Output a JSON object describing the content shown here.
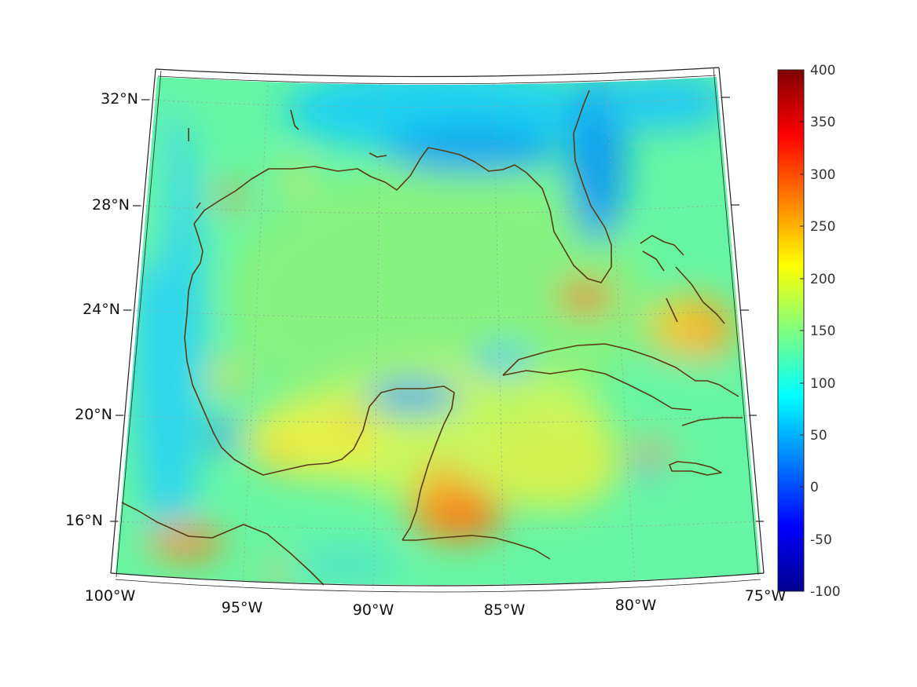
{
  "map": {
    "projection": "conic",
    "lat_labels": [
      "32°N",
      "28°N",
      "24°N",
      "20°N",
      "16°N"
    ],
    "lon_labels": [
      "100°W",
      "95°W",
      "90°W",
      "85°W",
      "80°W",
      "75°W"
    ],
    "grid": "dotted",
    "coastline_color": "#5a3b12"
  },
  "colorbar": {
    "colormap": "jet",
    "min": -100,
    "max": 400,
    "tick_labels": [
      "400",
      "350",
      "300",
      "250",
      "200",
      "150",
      "100",
      "50",
      "0",
      "-50",
      "-100"
    ]
  }
}
